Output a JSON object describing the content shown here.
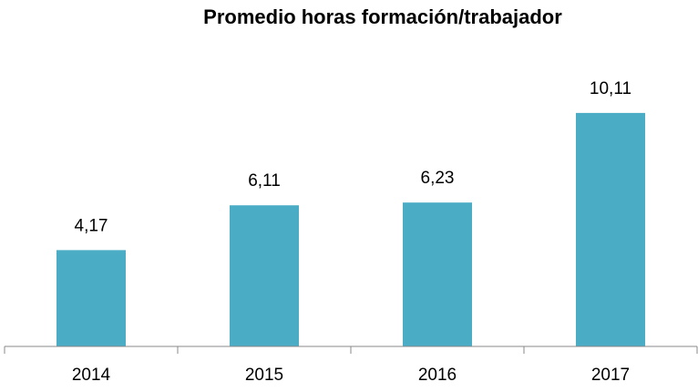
{
  "chart_data": {
    "type": "bar",
    "title": "Promedio horas formación/trabajador",
    "categories": [
      "2014",
      "2015",
      "2016",
      "2017"
    ],
    "values": [
      4.17,
      6.11,
      6.23,
      10.11
    ],
    "value_labels": [
      "4,17",
      "6,11",
      "6,23",
      "10,11"
    ],
    "color": "#4bacc6",
    "ylim": [
      0,
      15
    ]
  }
}
